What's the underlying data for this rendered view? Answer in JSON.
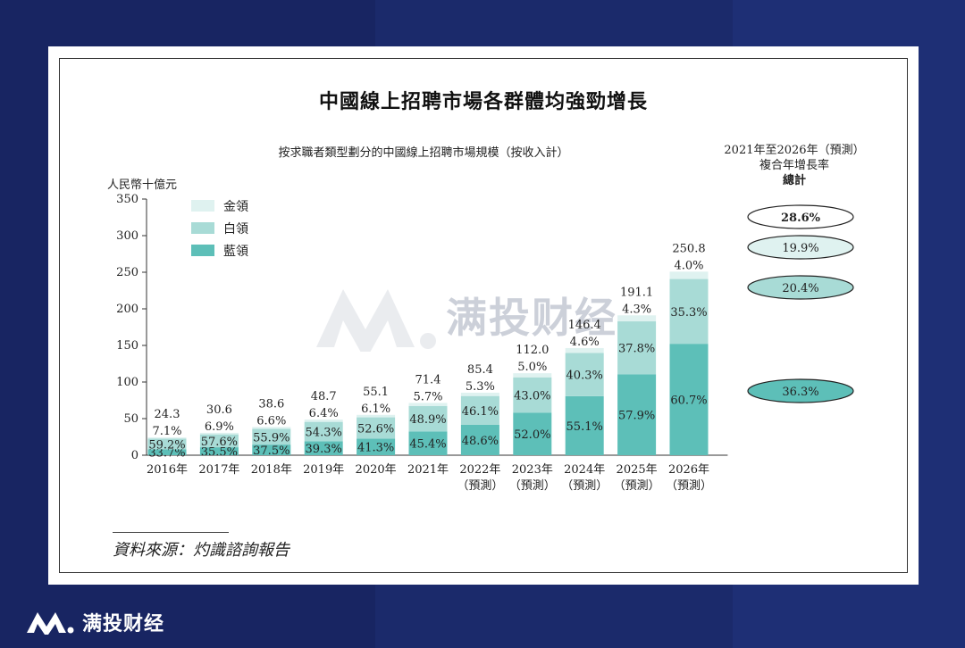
{
  "page": {
    "title": "中國線上招聘市場各群體均強勁增長",
    "source": "資料來源：灼識諮詢報告",
    "brand": "满投财经",
    "watermark": "满投财经"
  },
  "chart_data": {
    "type": "bar",
    "stacked": true,
    "title": "按求職者類型劃分的中國線上招聘市場規模（按收入計）",
    "ylabel": "人民幣十億元",
    "ylim": [
      0,
      350
    ],
    "yticks": [
      "0",
      "50",
      "100",
      "150",
      "200",
      "250",
      "300",
      "350"
    ],
    "categories": [
      "2016年",
      "2017年",
      "2018年",
      "2019年",
      "2020年",
      "2021年",
      "2022年",
      "2023年",
      "2024年",
      "2025年",
      "2026年"
    ],
    "category_sub": [
      "",
      "",
      "",
      "",
      "",
      "",
      "（預測）",
      "（預測）",
      "（預測）",
      "（預測）",
      "（預測）"
    ],
    "totals": [
      24.3,
      30.6,
      38.6,
      48.7,
      55.1,
      71.4,
      85.4,
      112.0,
      146.4,
      191.1,
      250.8
    ],
    "total_labels": [
      "24.3",
      "30.6",
      "38.6",
      "48.7",
      "55.1",
      "71.4",
      "85.4",
      "112.0",
      "146.4",
      "191.1",
      "250.8"
    ],
    "series": [
      {
        "name": "藍領",
        "color": "#5dbfb8",
        "shares": [
          33.7,
          35.5,
          37.5,
          39.3,
          41.3,
          45.4,
          48.6,
          52.0,
          55.1,
          57.9,
          60.7
        ],
        "labels": [
          "33.7%",
          "35.5%",
          "37.5%",
          "39.3%",
          "41.3%",
          "45.4%",
          "48.6%",
          "52.0%",
          "55.1%",
          "57.9%",
          "60.7%"
        ]
      },
      {
        "name": "白領",
        "color": "#a8dbd6",
        "shares": [
          59.2,
          57.6,
          55.9,
          54.3,
          52.6,
          48.9,
          46.1,
          43.0,
          40.3,
          37.8,
          35.3
        ],
        "labels": [
          "59.2%",
          "57.6%",
          "55.9%",
          "54.3%",
          "52.6%",
          "48.9%",
          "46.1%",
          "43.0%",
          "40.3%",
          "37.8%",
          "35.3%"
        ]
      },
      {
        "name": "金領",
        "color": "#dff2f0",
        "shares": [
          7.1,
          6.9,
          6.6,
          6.4,
          6.1,
          5.7,
          5.3,
          5.0,
          4.6,
          4.3,
          4.0
        ],
        "labels": [
          "7.1%",
          "6.9%",
          "6.6%",
          "6.4%",
          "6.1%",
          "5.7%",
          "5.3%",
          "5.0%",
          "4.6%",
          "4.3%",
          "4.0%"
        ]
      }
    ],
    "legend_order": [
      "金領",
      "白領",
      "藍領"
    ],
    "legend_position": "top-left",
    "cagr": {
      "header_line1": "2021年至2026年（預測）",
      "header_line2": "複合年增長率",
      "header_line3": "總計",
      "items": [
        {
          "label": "28.6%",
          "fill": "#ffffff",
          "bold": true
        },
        {
          "label": "19.9%",
          "fill": "#dff2f0",
          "bold": false
        },
        {
          "label": "20.4%",
          "fill": "#a8dbd6",
          "bold": false
        },
        {
          "label": "36.3%",
          "fill": "#5dbfb8",
          "bold": false
        }
      ]
    }
  }
}
